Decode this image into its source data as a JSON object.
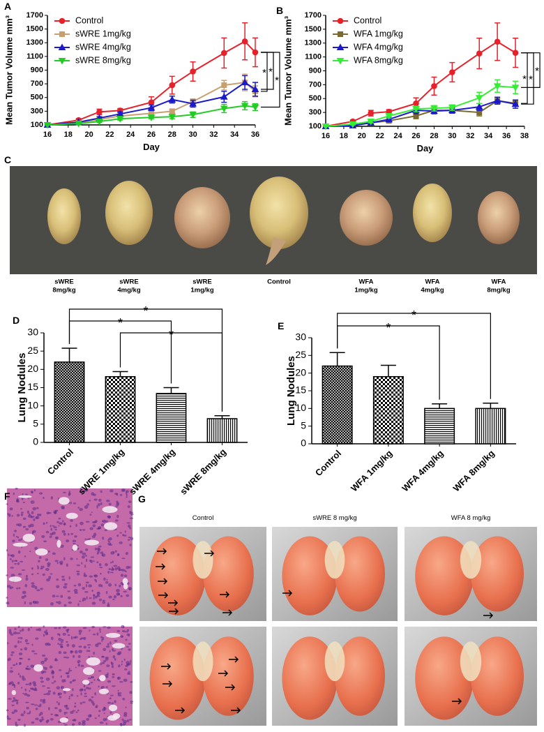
{
  "figure": {
    "panel_labels": [
      "A",
      "B",
      "C",
      "D",
      "E",
      "F",
      "G"
    ],
    "tumor_labels": [
      [
        "sWRE",
        "8mg/kg"
      ],
      [
        "sWRE",
        "4mg/kg"
      ],
      [
        "sWRE",
        "1mg/kg"
      ],
      [
        "Control"
      ],
      [
        "WFA",
        "1mg/kg"
      ],
      [
        "WFA",
        "4mg/kg"
      ],
      [
        "WFA",
        "8mg/kg"
      ]
    ],
    "lung_photo_titles": [
      "Control",
      "sWRE 8 mg/kg",
      "WFA 8 mg/kg"
    ]
  },
  "chart_data": [
    {
      "type": "line",
      "x_label": "Day",
      "y_label": "Mean Tumor Volume mm³",
      "x": [
        16,
        19,
        21,
        23,
        26,
        28,
        30,
        33,
        35,
        36
      ],
      "xlim": [
        16,
        36
      ],
      "xticks": [
        16,
        18,
        20,
        22,
        24,
        26,
        28,
        30,
        32,
        34,
        36
      ],
      "ylim": [
        100,
        1700
      ],
      "yticks": [
        100,
        300,
        500,
        700,
        900,
        1100,
        1300,
        1500,
        1700
      ],
      "legend": "upper-left",
      "series": [
        {
          "name": "Control",
          "color": "#e8202a",
          "marker": "circle",
          "values": [
            100,
            170,
            290,
            310,
            430,
            680,
            880,
            1150,
            1320,
            1160
          ],
          "errors": [
            0,
            20,
            40,
            30,
            80,
            130,
            140,
            220,
            270,
            210
          ]
        },
        {
          "name": "sWRE 1mg/kg",
          "color": "#c8a070",
          "marker": "square",
          "values": [
            100,
            130,
            180,
            230,
            270,
            300,
            440,
            680,
            720,
            590
          ],
          "errors": [
            0,
            15,
            20,
            20,
            30,
            30,
            40,
            70,
            120,
            80
          ]
        },
        {
          "name": "sWRE 4mg/kg",
          "color": "#1a1acc",
          "marker": "triangle-up",
          "values": [
            100,
            140,
            200,
            260,
            350,
            470,
            410,
            510,
            720,
            620
          ],
          "errors": [
            0,
            15,
            20,
            30,
            40,
            50,
            50,
            80,
            100,
            100
          ]
        },
        {
          "name": "sWRE 8mg/kg",
          "color": "#22cc22",
          "marker": "triangle-down",
          "values": [
            100,
            120,
            150,
            190,
            210,
            220,
            250,
            340,
            380,
            360
          ],
          "errors": [
            0,
            10,
            15,
            20,
            20,
            30,
            40,
            60,
            60,
            50
          ]
        }
      ],
      "significance": [
        "*",
        "*",
        "*"
      ]
    },
    {
      "type": "line",
      "x_label": "Day",
      "y_label": "Mean Tumor Volume mm³",
      "x": [
        16,
        19,
        21,
        23,
        26,
        28,
        30,
        33,
        35,
        37
      ],
      "xlim": [
        16,
        38
      ],
      "xticks": [
        16,
        18,
        20,
        22,
        24,
        26,
        28,
        30,
        32,
        34,
        36,
        38
      ],
      "ylim": [
        100,
        1700
      ],
      "yticks": [
        100,
        300,
        500,
        700,
        900,
        1100,
        1300,
        1500,
        1700
      ],
      "legend": "upper-left",
      "series": [
        {
          "name": "Control",
          "color": "#e8202a",
          "marker": "circle",
          "values": [
            100,
            170,
            290,
            310,
            430,
            680,
            880,
            1150,
            1320,
            1160
          ],
          "errors": [
            0,
            20,
            40,
            30,
            80,
            130,
            140,
            220,
            270,
            210
          ]
        },
        {
          "name": "WFA 1mg/kg",
          "color": "#7a6a30",
          "marker": "square",
          "values": [
            100,
            120,
            150,
            180,
            250,
            330,
            330,
            300,
            470,
            430
          ],
          "errors": [
            0,
            10,
            20,
            20,
            40,
            40,
            40,
            50,
            50,
            40
          ]
        },
        {
          "name": "WFA 4mg/kg",
          "color": "#1a1acc",
          "marker": "triangle-up",
          "values": [
            100,
            110,
            150,
            200,
            330,
            320,
            330,
            380,
            470,
            420
          ],
          "errors": [
            0,
            10,
            20,
            30,
            50,
            40,
            40,
            50,
            50,
            60
          ]
        },
        {
          "name": "WFA 8mg/kg",
          "color": "#33ee33",
          "marker": "triangle-down",
          "values": [
            100,
            130,
            170,
            250,
            350,
            360,
            370,
            510,
            680,
            660
          ],
          "errors": [
            0,
            10,
            20,
            30,
            40,
            40,
            40,
            80,
            90,
            90
          ]
        }
      ],
      "significance": [
        "*",
        "*",
        "*"
      ]
    },
    {
      "type": "bar",
      "y_label": "Lung Nodules",
      "categories": [
        "Control",
        "sWRE 1mg/kg",
        "sWRE 4mg/kg",
        "sWRE 8mg/kg"
      ],
      "values": [
        22,
        18,
        13.4,
        6.5
      ],
      "errors": [
        3.8,
        1.4,
        1.6,
        0.8
      ],
      "patterns": [
        "crosshatch",
        "checker",
        "horizontal",
        "vertical"
      ],
      "ylim": [
        0,
        30
      ],
      "yticks": [
        0,
        5,
        10,
        15,
        20,
        25,
        30
      ],
      "significance": [
        "*",
        "*",
        "*"
      ]
    },
    {
      "type": "bar",
      "y_label": "Lung Nodules",
      "categories": [
        "Control",
        "WFA 1mg/kg",
        "WFA 4mg/kg",
        "WFA 8mg/kg"
      ],
      "values": [
        22,
        19,
        10,
        10
      ],
      "errors": [
        3.8,
        3.2,
        1.3,
        1.5
      ],
      "patterns": [
        "crosshatch",
        "checker",
        "horizontal",
        "vertical"
      ],
      "ylim": [
        0,
        30
      ],
      "yticks": [
        0,
        5,
        10,
        15,
        20,
        25,
        30
      ],
      "significance": [
        "*",
        "*"
      ]
    }
  ]
}
